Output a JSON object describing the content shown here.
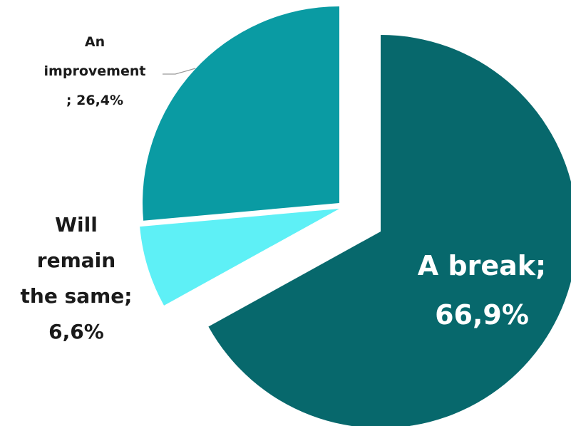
{
  "chart_data": {
    "type": "pie",
    "title": "",
    "slices": [
      {
        "label_lines": [
          "A break;",
          "66,9%"
        ],
        "label": "A break",
        "value": 66.9,
        "color": "#07686c",
        "label_color": "#ffffff"
      },
      {
        "label_lines": [
          "Will",
          "remain",
          "the same;",
          "6,6%"
        ],
        "label": "Will remain the same",
        "value": 6.6,
        "color": "#5ef0f6",
        "label_color": "#1a1a1a"
      },
      {
        "label_lines": [
          "An",
          "improvement",
          "; 26,4%"
        ],
        "label": "An improvement",
        "value": 26.4,
        "color": "#0a9ba3",
        "label_color": "#1a1a1a"
      }
    ],
    "start_angle_deg": 0,
    "direction": "clockwise",
    "exploded": true,
    "legend": "none"
  }
}
